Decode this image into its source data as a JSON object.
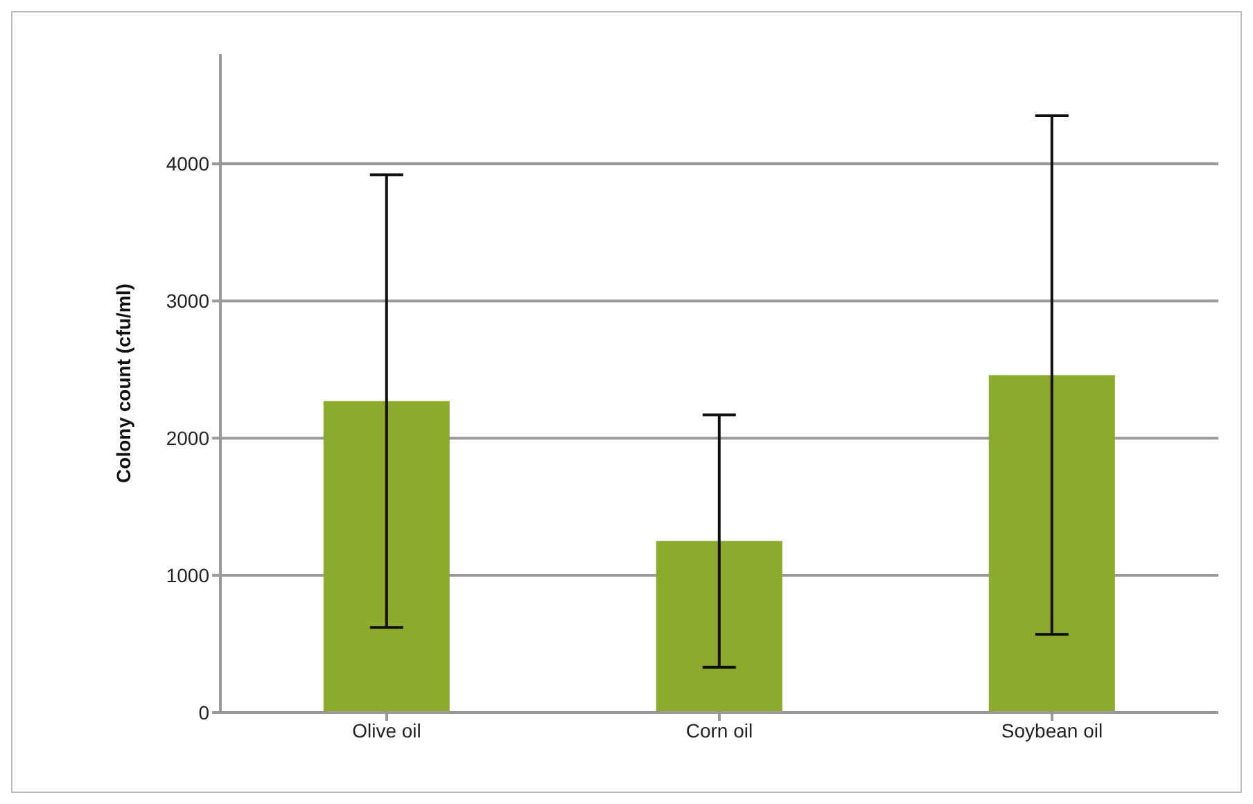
{
  "chart_data": {
    "type": "bar",
    "ylabel": "Colony count (cfu/ml)",
    "categories": [
      "Olive oil",
      "Corn oil",
      "Soybean oil"
    ],
    "values": [
      2270,
      1250,
      2460
    ],
    "errors": [
      1650,
      920,
      1890
    ],
    "color": "#8cab2c",
    "ylim": [
      0,
      4800
    ],
    "yticks": [
      0,
      1000,
      2000,
      3000,
      4000
    ],
    "grid": "y"
  }
}
